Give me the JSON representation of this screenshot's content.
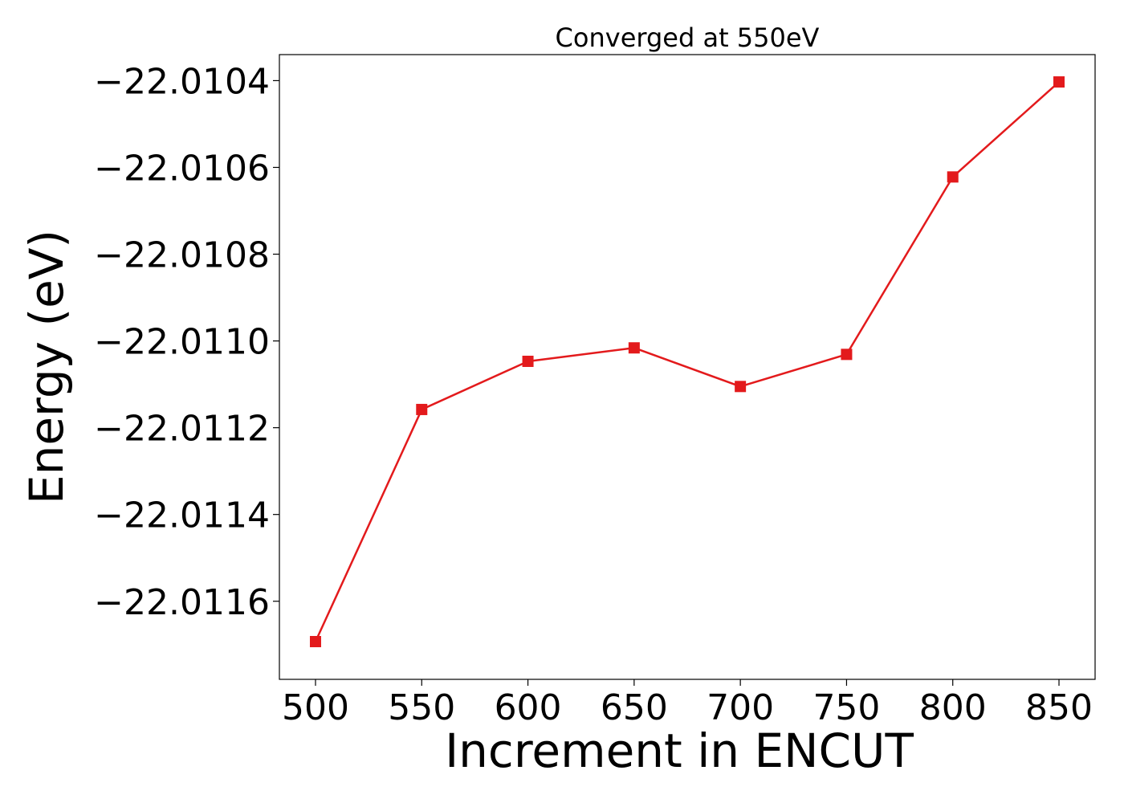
{
  "chart_data": {
    "type": "line",
    "title": "Converged at 550eV",
    "xlabel": "Increment in ENCUT",
    "ylabel": "Energy (eV)",
    "xlim": [
      483,
      867
    ],
    "ylim": [
      -22.01178,
      -22.01034
    ],
    "x_ticks": [
      500,
      550,
      600,
      650,
      700,
      750,
      800,
      850
    ],
    "x_tick_labels": [
      "500",
      "550",
      "600",
      "650",
      "700",
      "750",
      "800",
      "850"
    ],
    "y_ticks": [
      -22.0104,
      -22.0106,
      -22.0108,
      -22.011,
      -22.0112,
      -22.0114,
      -22.0116
    ],
    "y_tick_labels": [
      "−22.0104",
      "−22.0106",
      "−22.0108",
      "−22.0110",
      "−22.0112",
      "−22.0114",
      "−22.0116"
    ],
    "grid": false,
    "legend": false,
    "series": [
      {
        "color": "#e31a1c",
        "marker": "square",
        "x": [
          500,
          550,
          600,
          650,
          700,
          750,
          800,
          850
        ],
        "y": [
          -22.011693,
          -22.011158,
          -22.011047,
          -22.011016,
          -22.011105,
          -22.011031,
          -22.010622,
          -22.010403
        ]
      }
    ]
  }
}
